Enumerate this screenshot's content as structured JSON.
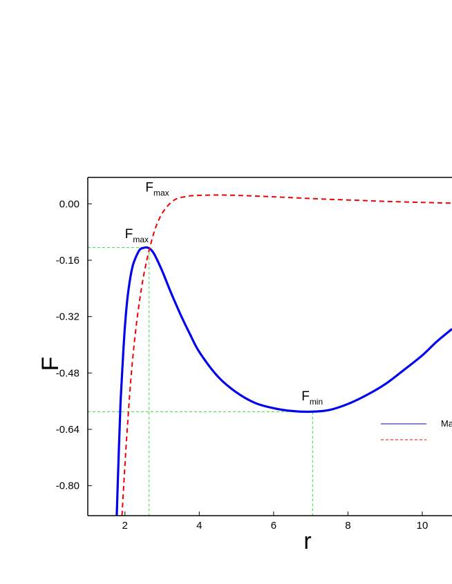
{
  "chart_data": {
    "type": "line",
    "xlabel": "r",
    "ylabel": "F",
    "xlim": [
      1,
      10.8
    ],
    "ylim": [
      -0.885,
      0.075
    ],
    "xticks": [
      2,
      4,
      6,
      8,
      10
    ],
    "xtick_labels": [
      "2",
      "4",
      "6",
      "8",
      "10"
    ],
    "yticks": [
      0.0,
      -0.16,
      -0.32,
      -0.48,
      -0.64,
      -0.8
    ],
    "ytick_labels": [
      "0.00",
      "-0.16",
      "-0.32",
      "-0.48",
      "-0.64",
      "-0.80"
    ],
    "grid": false,
    "legend_placement": "right",
    "series": [
      {
        "name": "Ma",
        "color": "#0000ee",
        "style": "solid",
        "x": [
          1.78,
          1.83,
          1.88,
          1.95,
          2.02,
          2.1,
          2.2,
          2.3,
          2.4,
          2.5,
          2.6,
          2.7,
          2.8,
          3.0,
          3.25,
          3.5,
          3.75,
          4.0,
          4.5,
          5.0,
          5.5,
          6.0,
          6.5,
          7.0,
          7.5,
          8.0,
          8.5,
          9.0,
          9.5,
          10.0,
          10.4,
          10.8
        ],
        "values": [
          -0.885,
          -0.72,
          -0.57,
          -0.43,
          -0.32,
          -0.24,
          -0.18,
          -0.15,
          -0.13,
          -0.125,
          -0.124,
          -0.13,
          -0.145,
          -0.19,
          -0.255,
          -0.315,
          -0.37,
          -0.42,
          -0.49,
          -0.535,
          -0.565,
          -0.58,
          -0.588,
          -0.59,
          -0.585,
          -0.568,
          -0.543,
          -0.512,
          -0.472,
          -0.43,
          -0.39,
          -0.355
        ]
      },
      {
        "name": "",
        "color": "#ee0000",
        "style": "dashed",
        "x": [
          1.92,
          2.0,
          2.1,
          2.2,
          2.3,
          2.4,
          2.5,
          2.6,
          2.7,
          2.8,
          2.9,
          3.0,
          3.2,
          3.4,
          3.6,
          3.8,
          4.0,
          4.5,
          5.0,
          6.0,
          7.0,
          8.0,
          9.0,
          10.0,
          10.8
        ],
        "values": [
          -0.885,
          -0.74,
          -0.58,
          -0.45,
          -0.35,
          -0.27,
          -0.205,
          -0.155,
          -0.112,
          -0.075,
          -0.048,
          -0.027,
          0.0,
          0.015,
          0.02,
          0.023,
          0.024,
          0.025,
          0.024,
          0.02,
          0.015,
          0.011,
          0.007,
          0.004,
          0.002
        ]
      }
    ],
    "guides": [
      {
        "x": 2.65,
        "y": -0.124
      },
      {
        "x": 7.05,
        "y": -0.59
      }
    ],
    "annotations": [
      {
        "main": "F",
        "sub": "max",
        "x": 2.55,
        "y": 0.035
      },
      {
        "main": "F",
        "sub": "max",
        "x": 2.0,
        "y": -0.097
      },
      {
        "main": "F",
        "sub": "min",
        "x": 6.75,
        "y": -0.558
      }
    ],
    "legend": [
      {
        "label": "Ma",
        "color": "#0000ee",
        "style": "solid"
      },
      {
        "label": "",
        "color": "#ee0000",
        "style": "dashed"
      }
    ]
  }
}
